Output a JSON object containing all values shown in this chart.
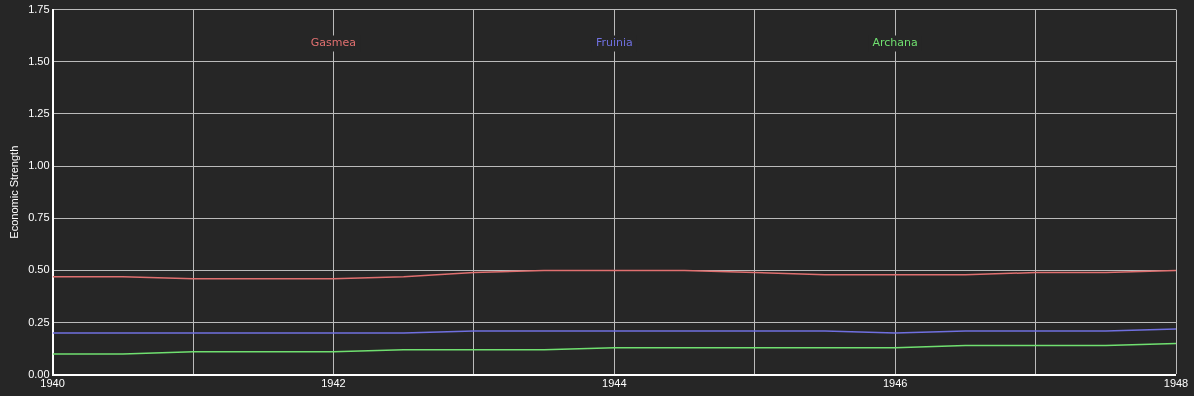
{
  "chart_data": {
    "type": "line",
    "ylabel": "Economic Strength",
    "x": [
      1940,
      1940.5,
      1941,
      1941.5,
      1942,
      1942.5,
      1943,
      1943.5,
      1944,
      1944.5,
      1945,
      1945.5,
      1946,
      1946.5,
      1947,
      1947.5,
      1948
    ],
    "series": [
      {
        "name": "Gasmea",
        "color": "#e07070",
        "values": [
          0.47,
          0.47,
          0.46,
          0.46,
          0.46,
          0.47,
          0.49,
          0.5,
          0.5,
          0.5,
          0.49,
          0.48,
          0.48,
          0.48,
          0.49,
          0.49,
          0.5
        ]
      },
      {
        "name": "Fruinia",
        "color": "#7070e0",
        "values": [
          0.2,
          0.2,
          0.2,
          0.2,
          0.2,
          0.2,
          0.21,
          0.21,
          0.21,
          0.21,
          0.21,
          0.21,
          0.2,
          0.21,
          0.21,
          0.21,
          0.22
        ]
      },
      {
        "name": "Archana",
        "color": "#70e070",
        "values": [
          0.1,
          0.1,
          0.11,
          0.11,
          0.11,
          0.12,
          0.12,
          0.12,
          0.13,
          0.13,
          0.13,
          0.13,
          0.13,
          0.14,
          0.14,
          0.14,
          0.15
        ]
      }
    ],
    "xlim": [
      1940,
      1948
    ],
    "xticks": [
      1940,
      {
        "value": 1941,
        "label": null
      },
      1942,
      {
        "value": 1943,
        "label": null
      },
      1944,
      {
        "value": 1945,
        "label": null
      },
      1946,
      {
        "value": 1947,
        "label": null
      },
      1948
    ],
    "ylim": [
      0,
      1.75
    ],
    "yticks": [
      {
        "value": 0,
        "label": "0.00"
      },
      {
        "value": 0.25,
        "label": "0.25"
      },
      {
        "value": 0.5,
        "label": "0.50"
      },
      {
        "value": 0.75,
        "label": "0.75"
      },
      {
        "value": 1,
        "label": "1.00"
      },
      {
        "value": 1.25,
        "label": "1.25"
      },
      {
        "value": 1.5,
        "label": "1.50"
      },
      {
        "value": 1.75,
        "label": "1.75"
      }
    ],
    "grid": true,
    "legend": "top",
    "marker": "none",
    "line_style": "solid"
  }
}
